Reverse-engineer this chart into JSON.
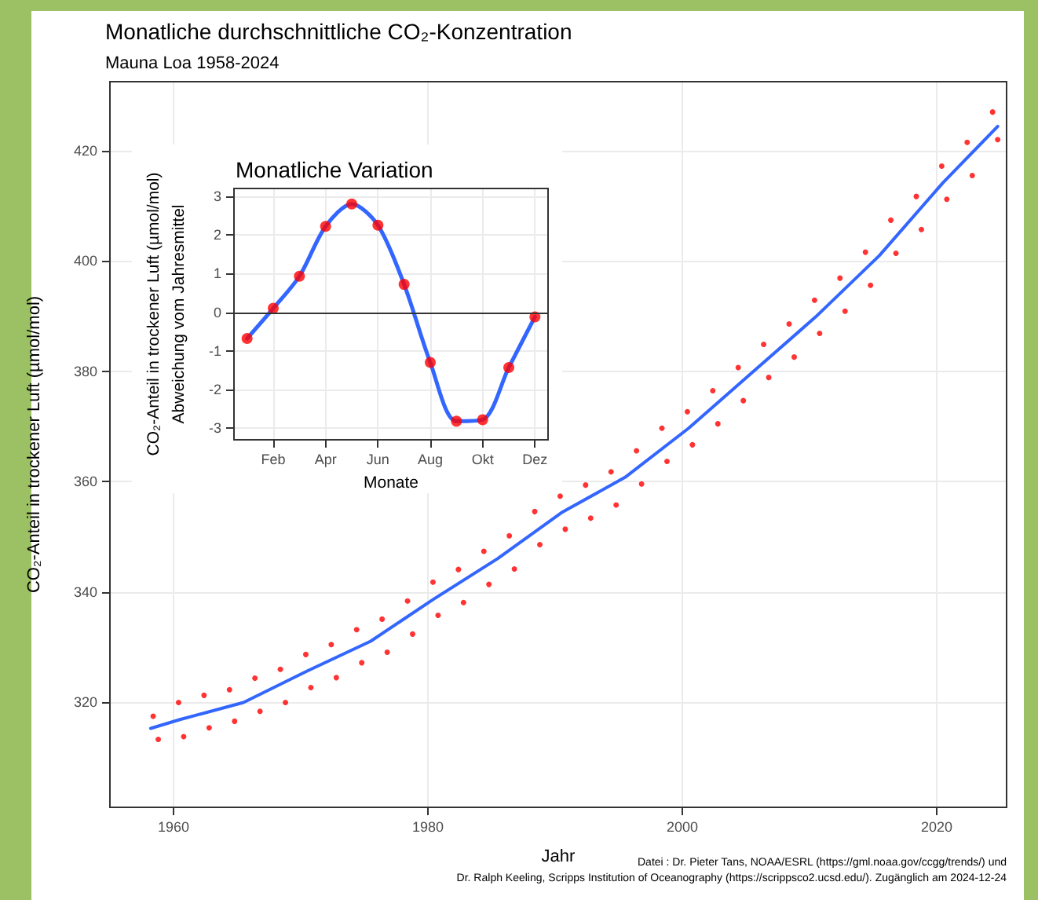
{
  "chart_data": [
    {
      "type": "scatter",
      "title": "Monatliche durchschnittliche CO₂-Konzentration",
      "subtitle": "Mauna Loa 1958-2024",
      "xlabel": "Jahr",
      "ylabel": "CO₂-Anteil in trockener Luft (µmol/mol)",
      "annotations": [
        "Datei : Dr. Pieter Tans, NOAA/ESRL (https://gml.noaa.gov/ccgg/trends/) und",
        "Dr. Ralph Keeling, Scripps Institution of Oceanography (https://scrippsco2.ucsd.edu/). Zugänglich am 2024-12-24"
      ],
      "series": [
        {
          "color": "#ff0000",
          "marker": "circle",
          "x": [
            1958.4,
            1958.8,
            1960.4,
            1960.8,
            1962.4,
            1962.8,
            1964.4,
            1964.8,
            1966.4,
            1966.8,
            1968.4,
            1968.8,
            1970.4,
            1970.8,
            1972.4,
            1972.8,
            1974.4,
            1974.8,
            1976.4,
            1976.8,
            1978.4,
            1978.8,
            1980.4,
            1980.8,
            1982.4,
            1982.8,
            1984.4,
            1984.8,
            1986.4,
            1986.8,
            1988.4,
            1988.8,
            1990.4,
            1990.8,
            1992.4,
            1992.8,
            1994.4,
            1994.8,
            1996.4,
            1996.8,
            1998.4,
            1998.8,
            2000.4,
            2000.8,
            2002.4,
            2002.8,
            2004.4,
            2004.8,
            2006.4,
            2006.8,
            2008.4,
            2008.8,
            2010.4,
            2010.8,
            2012.4,
            2012.8,
            2014.4,
            2014.8,
            2016.4,
            2016.8,
            2018.4,
            2018.8,
            2020.4,
            2020.8,
            2022.4,
            2022.8,
            2024.4,
            2024.8
          ],
          "values": [
            317.5,
            313.3,
            320.0,
            313.8,
            321.3,
            315.4,
            322.3,
            316.6,
            324.4,
            318.4,
            326.0,
            320.0,
            328.7,
            322.7,
            330.5,
            324.5,
            333.2,
            327.2,
            335.1,
            329.1,
            338.4,
            332.4,
            341.8,
            335.8,
            344.1,
            338.1,
            347.4,
            341.4,
            350.2,
            344.2,
            354.6,
            348.6,
            357.4,
            351.4,
            359.4,
            353.4,
            361.8,
            355.8,
            365.6,
            359.6,
            369.7,
            363.7,
            372.7,
            366.7,
            376.5,
            370.5,
            380.7,
            374.7,
            384.9,
            378.9,
            388.6,
            382.6,
            392.9,
            386.9,
            396.9,
            390.9,
            401.6,
            395.6,
            407.4,
            401.4,
            411.7,
            405.7,
            417.2,
            411.2,
            421.5,
            415.5,
            427.0,
            422.0
          ]
        },
        {
          "type": "line",
          "color": "#3366ff",
          "marker": "none",
          "line_style": "solid",
          "x": [
            1958.2,
            1960.5,
            1965.5,
            1970.5,
            1975.5,
            1980.5,
            1985.5,
            1990.5,
            1995.5,
            2000.5,
            2005.5,
            2010.5,
            2015.5,
            2020.5,
            2024.8
          ],
          "values": [
            315.3,
            316.9,
            320.0,
            325.7,
            331.1,
            338.8,
            346.1,
            354.4,
            360.8,
            369.7,
            379.8,
            389.9,
            401.0,
            414.2,
            424.4
          ]
        }
      ],
      "xlim": [
        1955,
        2025.5
      ],
      "xticks": [
        1960,
        1980,
        2000,
        2020
      ],
      "ylim": [
        301,
        432.5
      ],
      "yticks": [
        320,
        340,
        360,
        380,
        400,
        420
      ],
      "grid": true
    },
    {
      "type": "line",
      "title": "Monatliche Variation",
      "xlabel": "Monate",
      "ylabel": "CO₂-Anteil in trockener Luft (µmol/mol)\nAbweichung vom Jahresmittel",
      "categories": [
        null,
        "Feb",
        null,
        "Apr",
        null,
        "Jun",
        null,
        "Aug",
        null,
        "Okt",
        null,
        "Dez"
      ],
      "series": [
        {
          "color": "#3366ff",
          "marker": "none",
          "line_style": "solid",
          "values": [
            -0.68,
            0.1,
            0.93,
            2.22,
            2.8,
            2.25,
            0.72,
            -1.3,
            -2.82,
            -2.78,
            -1.43,
            -0.12
          ]
        },
        {
          "type": "scatter",
          "color": "#ff0000",
          "marker": "circle",
          "values": [
            -0.68,
            0.1,
            0.93,
            2.22,
            2.8,
            2.25,
            0.72,
            -1.3,
            -2.82,
            -2.78,
            -1.43,
            -0.12
          ]
        }
      ],
      "ylim": [
        -3.3,
        3.2
      ],
      "yticks": [
        -3,
        -2,
        -1,
        0,
        1,
        2,
        3
      ],
      "grid": true,
      "ref_lines": [
        {
          "axis": "y",
          "value": 0,
          "color": "#333333"
        }
      ]
    }
  ]
}
